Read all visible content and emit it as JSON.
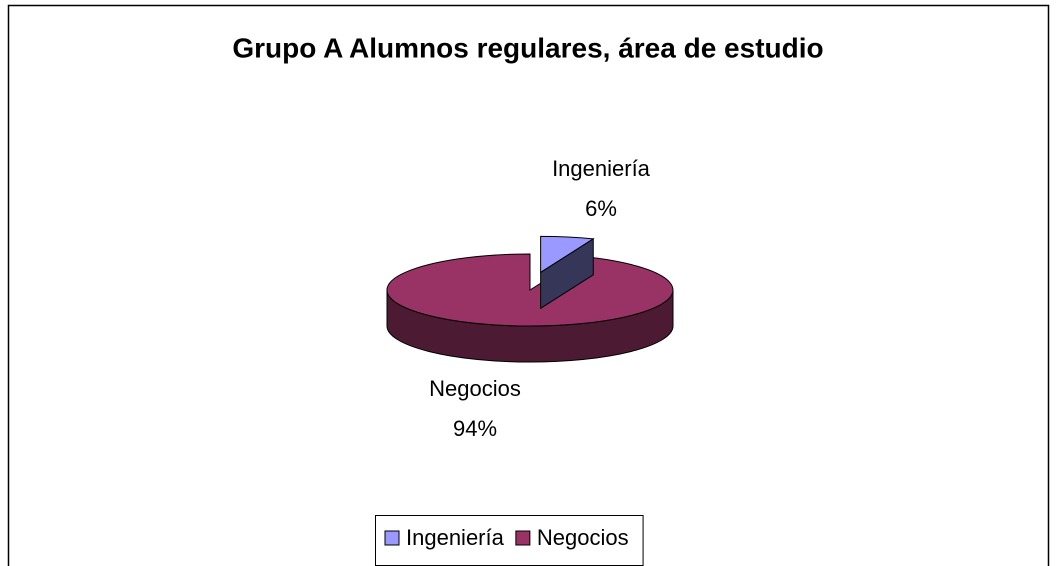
{
  "chart_data": {
    "type": "pie",
    "title": "Grupo A Alumnos regulares, área de estudio",
    "categories": [
      "Ingeniería",
      "Negocios"
    ],
    "values": [
      6,
      94
    ],
    "value_labels": [
      "6%",
      "94%"
    ],
    "colors": [
      "#9999ff",
      "#993366"
    ],
    "legend": "bottom"
  }
}
